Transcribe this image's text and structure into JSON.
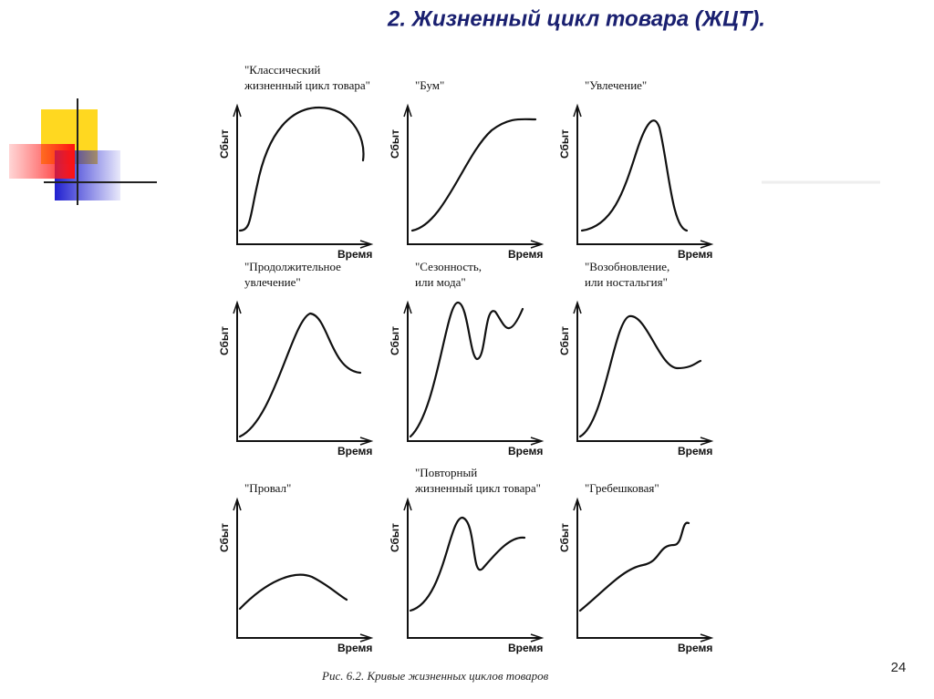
{
  "title": "2. Жизненный цикл товара (ЖЦТ).",
  "panels": [
    {
      "label": [
        "\"Классический",
        "жизненный цикл товара\""
      ],
      "y_axis": "Сбыт",
      "x_axis": "Время"
    },
    {
      "label": [
        "\"Бум\""
      ],
      "y_axis": "Сбыт",
      "x_axis": "Время"
    },
    {
      "label": [
        "\"Увлечение\""
      ],
      "y_axis": "Сбыт",
      "x_axis": "Время"
    },
    {
      "label": [
        "\"Продолжительное",
        "увлечение\""
      ],
      "y_axis": "Сбыт",
      "x_axis": "Время"
    },
    {
      "label": [
        "\"Сезонность,",
        "или мода\""
      ],
      "y_axis": "Сбыт",
      "x_axis": "Время"
    },
    {
      "label": [
        "\"Возобновление,",
        "или ностальгия\""
      ],
      "y_axis": "Сбыт",
      "x_axis": "Время"
    },
    {
      "label": [
        "\"Провал\""
      ],
      "y_axis": "Сбыт",
      "x_axis": "Время"
    },
    {
      "label": [
        "\"Повторный",
        "жизненный цикл товара\""
      ],
      "y_axis": "Сбыт",
      "x_axis": "Время"
    },
    {
      "label": [
        "\"Гребешковая\""
      ],
      "y_axis": "Сбыт",
      "x_axis": "Время"
    }
  ],
  "caption": "Рис. 6.2. Кривые жизненных циклов товаров",
  "page_number": "24"
}
